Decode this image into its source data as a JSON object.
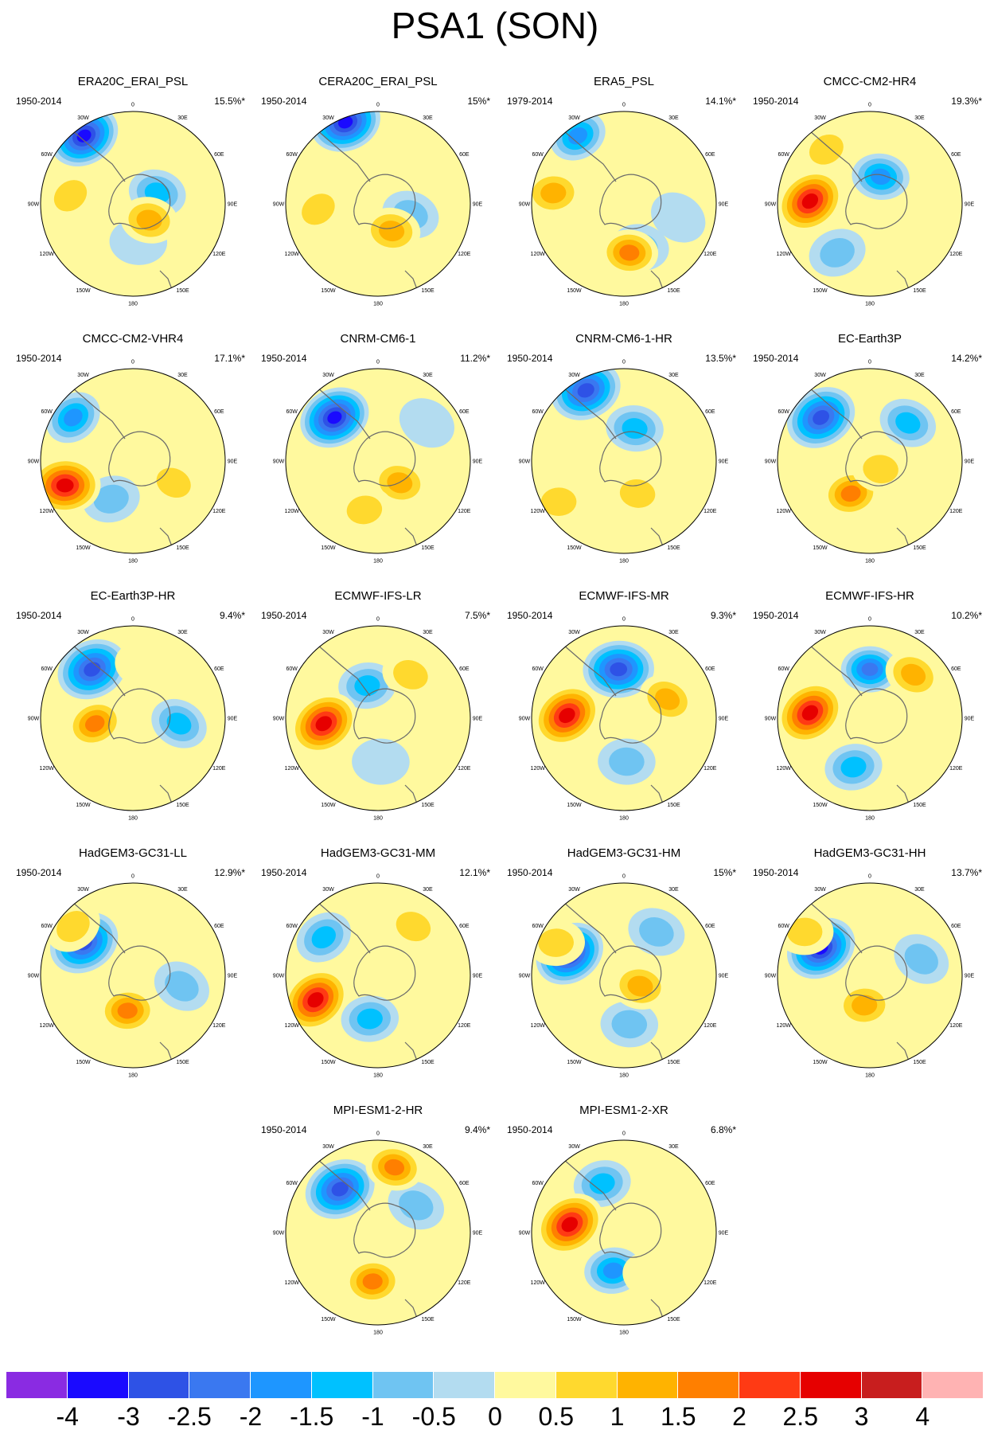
{
  "title": "PSA1 (SON)",
  "longitude_labels": [
    "0",
    "30E",
    "60E",
    "90E",
    "120E",
    "150E",
    "180",
    "150W",
    "120W",
    "90W",
    "60W",
    "30W"
  ],
  "panels": [
    {
      "name": "ERA20C_ERAI_PSL",
      "period": "1950-2014",
      "variance": "15.5%*",
      "lows": [
        [
          -1.8,
          -2.5,
          -3.3,
          "strong"
        ],
        [
          0.9,
          -0.4,
          -1.5,
          ""
        ],
        [
          0.2,
          1.4,
          -0.5,
          ""
        ]
      ],
      "highs": [
        [
          0.6,
          0.6,
          1.4,
          ""
        ],
        [
          -2.3,
          -0.3,
          0.8,
          ""
        ]
      ]
    },
    {
      "name": "CERA20C_ERAI_PSL",
      "period": "1950-2014",
      "variance": "15%*",
      "lows": [
        [
          -1.2,
          -3.0,
          -3.6,
          "strong"
        ],
        [
          1.2,
          0.4,
          -1.0,
          ""
        ]
      ],
      "highs": [
        [
          0.5,
          1.0,
          1.3,
          ""
        ],
        [
          -2.2,
          0.2,
          0.8,
          ""
        ]
      ]
    },
    {
      "name": "ERA5_PSL",
      "period": "1979-2014",
      "variance": "14.1%*",
      "lows": [
        [
          -1.7,
          -2.5,
          -2.2,
          ""
        ],
        [
          0.6,
          1.6,
          -1.2,
          ""
        ],
        [
          2.0,
          0.5,
          -0.6,
          ""
        ]
      ],
      "highs": [
        [
          0.2,
          1.8,
          2.0,
          ""
        ],
        [
          -2.6,
          -0.4,
          1.6,
          ""
        ]
      ]
    },
    {
      "name": "CMCC-CM2-HR4",
      "period": "1950-2014",
      "variance": "19.3%*",
      "lows": [
        [
          0.4,
          -1.0,
          -2.2,
          ""
        ],
        [
          -1.2,
          1.8,
          -0.9,
          ""
        ]
      ],
      "highs": [
        [
          -2.2,
          -0.1,
          3.0,
          "strong"
        ],
        [
          -1.6,
          -2.0,
          1.0,
          ""
        ]
      ]
    },
    {
      "name": "CMCC-CM2-VHR4",
      "period": "1950-2014",
      "variance": "17.1%*",
      "lows": [
        [
          -2.2,
          -1.6,
          -2.0,
          ""
        ],
        [
          -0.8,
          1.4,
          -1.0,
          ""
        ]
      ],
      "highs": [
        [
          -2.5,
          0.9,
          3.0,
          "strong"
        ],
        [
          1.5,
          0.8,
          0.8,
          ""
        ]
      ]
    },
    {
      "name": "CNRM-CM6-1",
      "period": "1950-2014",
      "variance": "11.2%*",
      "lows": [
        [
          -1.6,
          -1.6,
          -3.5,
          "strong"
        ],
        [
          1.8,
          -1.4,
          -0.6,
          ""
        ]
      ],
      "highs": [
        [
          0.8,
          0.8,
          1.4,
          ""
        ],
        [
          -0.5,
          1.8,
          1.0,
          ""
        ]
      ]
    },
    {
      "name": "CNRM-CM6-1-HR",
      "period": "1950-2014",
      "variance": "13.5%*",
      "lows": [
        [
          -1.4,
          -2.6,
          -3.0,
          "strong"
        ],
        [
          0.4,
          -1.2,
          -1.5,
          ""
        ]
      ],
      "highs": [
        [
          0.5,
          1.2,
          1.0,
          ""
        ],
        [
          -2.4,
          1.5,
          0.8,
          ""
        ]
      ]
    },
    {
      "name": "EC-Earth3P",
      "period": "1950-2014",
      "variance": "14.2%*",
      "lows": [
        [
          -1.8,
          -1.6,
          -3.0,
          "strong"
        ],
        [
          1.4,
          -1.4,
          -1.6,
          ""
        ]
      ],
      "highs": [
        [
          -0.7,
          1.2,
          2.0,
          ""
        ],
        [
          0.4,
          0.3,
          1.2,
          ""
        ]
      ]
    },
    {
      "name": "EC-Earth3P-HR",
      "period": "1950-2014",
      "variance": "9.4%*",
      "lows": [
        [
          -1.5,
          -1.8,
          -3.0,
          "strong"
        ],
        [
          1.7,
          0.2,
          -1.4,
          ""
        ]
      ],
      "highs": [
        [
          -1.4,
          0.2,
          2.2,
          ""
        ],
        [
          0.4,
          -2.0,
          0.6,
          ""
        ]
      ]
    },
    {
      "name": "ECMWF-IFS-LR",
      "period": "1950-2014",
      "variance": "7.5%*",
      "lows": [
        [
          -0.4,
          -1.2,
          -1.3,
          ""
        ],
        [
          0.1,
          1.6,
          -0.6,
          ""
        ]
      ],
      "highs": [
        [
          -2.0,
          0.2,
          3.0,
          "strong"
        ],
        [
          1.2,
          -1.6,
          0.8,
          ""
        ]
      ]
    },
    {
      "name": "ECMWF-IFS-MR",
      "period": "1950-2014",
      "variance": "9.3%*",
      "lows": [
        [
          -0.2,
          -1.8,
          -2.8,
          "strong"
        ],
        [
          0.1,
          1.6,
          -1.0,
          ""
        ]
      ],
      "highs": [
        [
          -2.1,
          -0.1,
          2.8,
          "strong"
        ],
        [
          1.6,
          -0.7,
          1.6,
          ""
        ]
      ]
    },
    {
      "name": "ECMWF-IFS-HR",
      "period": "1950-2014",
      "variance": "10.2%*",
      "lows": [
        [
          0.0,
          -1.8,
          -2.4,
          ""
        ],
        [
          -0.6,
          1.8,
          -1.5,
          ""
        ]
      ],
      "highs": [
        [
          -2.2,
          -0.2,
          3.0,
          "strong"
        ],
        [
          1.6,
          -1.6,
          1.4,
          ""
        ]
      ]
    },
    {
      "name": "HadGEM3-GC31-LL",
      "period": "1950-2014",
      "variance": "12.9%*",
      "lows": [
        [
          -1.8,
          -1.2,
          -3.0,
          "strong"
        ],
        [
          1.8,
          0.4,
          -1.2,
          ""
        ]
      ],
      "highs": [
        [
          -0.2,
          1.3,
          1.8,
          ""
        ],
        [
          -2.2,
          -1.8,
          0.8,
          ""
        ]
      ]
    },
    {
      "name": "HadGEM3-GC31-MM",
      "period": "1950-2014",
      "variance": "12.1%*",
      "lows": [
        [
          -2.0,
          -1.4,
          -1.5,
          ""
        ],
        [
          -0.3,
          1.6,
          -1.5,
          ""
        ]
      ],
      "highs": [
        [
          -2.3,
          0.9,
          3.0,
          "strong"
        ],
        [
          1.3,
          -1.8,
          1.0,
          ""
        ]
      ]
    },
    {
      "name": "HadGEM3-GC31-HM",
      "period": "1950-2014",
      "variance": "15%*",
      "lows": [
        [
          -2.0,
          -0.8,
          -3.5,
          "strong"
        ],
        [
          1.2,
          -1.6,
          -1.2,
          ""
        ],
        [
          0.2,
          1.8,
          -0.8,
          ""
        ]
      ],
      "highs": [
        [
          0.6,
          0.4,
          1.4,
          ""
        ],
        [
          -2.5,
          -1.2,
          0.9,
          ""
        ]
      ]
    },
    {
      "name": "HadGEM3-GC31-HH",
      "period": "1950-2014",
      "variance": "13.7%*",
      "lows": [
        [
          -1.8,
          -1.0,
          -3.5,
          "strong"
        ],
        [
          1.9,
          -0.6,
          -1.0,
          ""
        ]
      ],
      "highs": [
        [
          -0.2,
          1.1,
          1.6,
          ""
        ],
        [
          -2.4,
          -1.6,
          0.8,
          ""
        ]
      ]
    },
    {
      "name": "MPI-ESM1-2-HR",
      "period": "1950-2014",
      "variance": "9.4%*",
      "lows": [
        [
          -1.4,
          -1.6,
          -3.0,
          "strong"
        ],
        [
          1.4,
          -1.0,
          -1.0,
          ""
        ]
      ],
      "highs": [
        [
          -0.2,
          1.8,
          1.8,
          ""
        ],
        [
          0.6,
          -2.4,
          2.0,
          ""
        ]
      ]
    },
    {
      "name": "MPI-ESM1-2-XR",
      "period": "1950-2014",
      "variance": "6.8%*",
      "lows": [
        [
          -0.4,
          1.4,
          -1.8,
          ""
        ],
        [
          -0.8,
          -1.8,
          -1.6,
          ""
        ]
      ],
      "highs": [
        [
          -2.0,
          -0.3,
          2.8,
          "strong"
        ],
        [
          1.0,
          1.6,
          0.6,
          ""
        ]
      ]
    }
  ],
  "colorbar": {
    "colors": [
      "#8a2be2",
      "#1a0aff",
      "#2e52e6",
      "#3a78f0",
      "#1e96ff",
      "#00c1ff",
      "#6fc4f2",
      "#b3dcf0",
      "#fff99e",
      "#ffd92e",
      "#ffb300",
      "#ff7f00",
      "#ff3a14",
      "#e60000",
      "#c81e1e",
      "#ffb3b3"
    ],
    "labels": [
      "-4",
      "-3",
      "-2.5",
      "-2",
      "-1.5",
      "-1",
      "-0.5",
      "0",
      "0.5",
      "1",
      "1.5",
      "2",
      "2.5",
      "3",
      "4"
    ]
  }
}
